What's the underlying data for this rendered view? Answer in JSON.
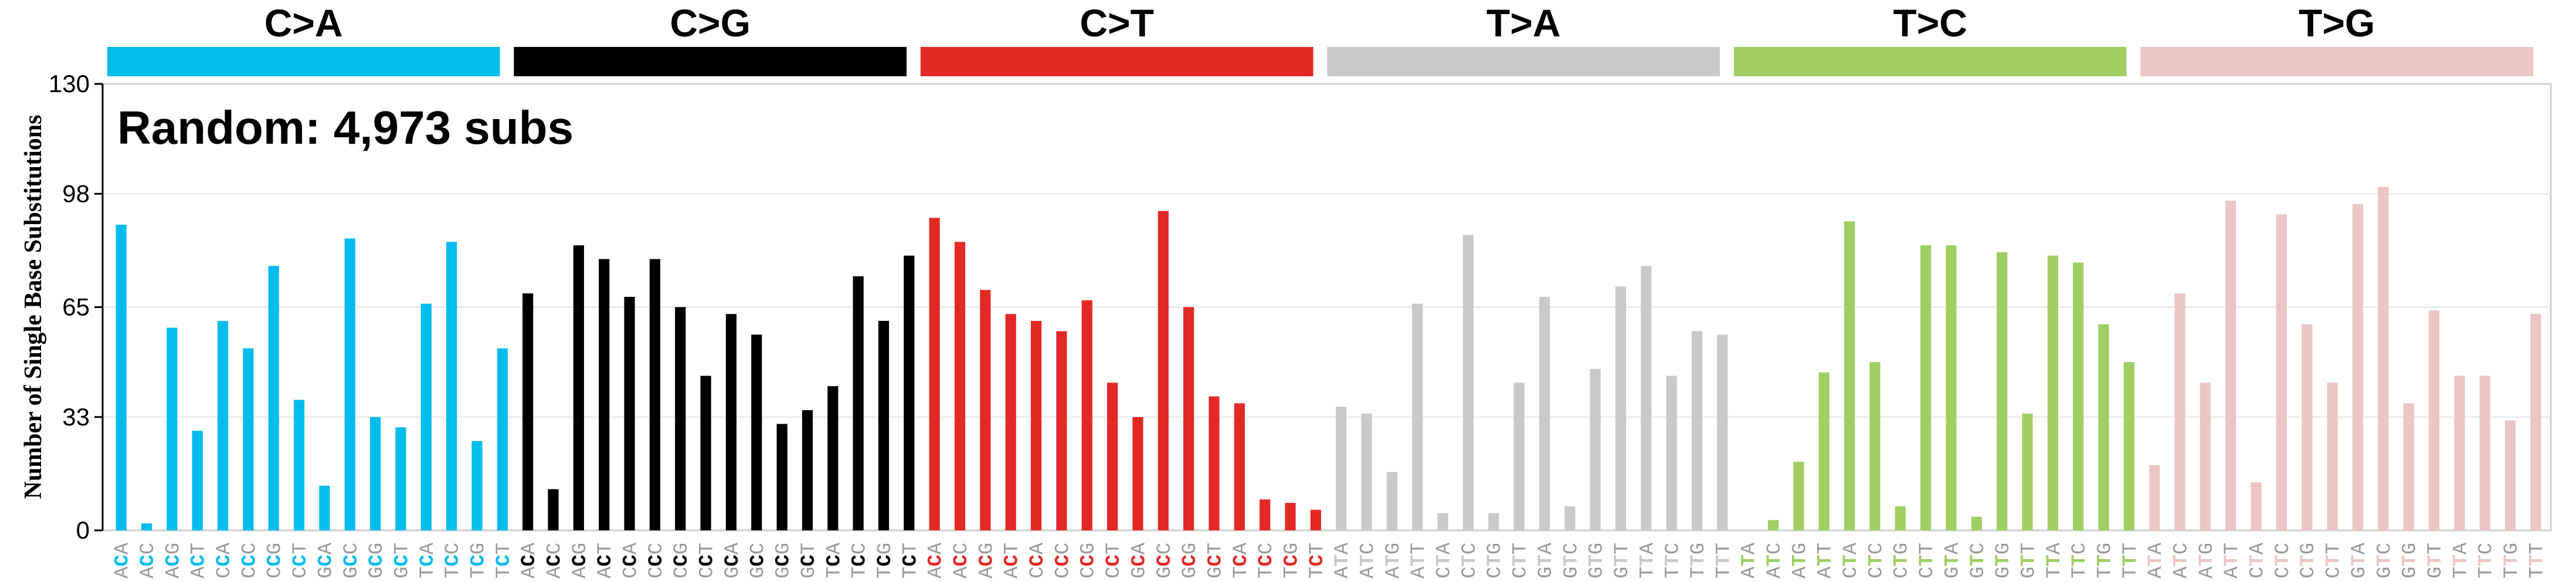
{
  "chart_data": {
    "type": "bar",
    "title": "Random: 4,973 subs",
    "ylabel": "Number of Single Base Substitutions",
    "ylim": [
      0,
      130
    ],
    "yticks": [
      0,
      33,
      65,
      98,
      130
    ],
    "grid": true,
    "groups": [
      {
        "name": "C>A",
        "color": "#03bcee"
      },
      {
        "name": "C>G",
        "color": "#000000"
      },
      {
        "name": "C>T",
        "color": "#e32926"
      },
      {
        "name": "T>A",
        "color": "#cac9c9"
      },
      {
        "name": "T>C",
        "color": "#a1ce63"
      },
      {
        "name": "T>G",
        "color": "#ebc6c4"
      }
    ],
    "contexts": [
      "ACA",
      "ACC",
      "ACG",
      "ACT",
      "CCA",
      "CCC",
      "CCG",
      "CCT",
      "GCA",
      "GCC",
      "GCG",
      "GCT",
      "TCA",
      "TCC",
      "TCG",
      "TCT"
    ],
    "contexts_t": [
      "ATA",
      "ATC",
      "ATG",
      "ATT",
      "CTA",
      "CTC",
      "CTG",
      "CTT",
      "GTA",
      "GTC",
      "GTG",
      "GTT",
      "TTA",
      "TTC",
      "TTG",
      "TTT"
    ],
    "series": [
      {
        "name": "C>A",
        "values": [
          89,
          2,
          59,
          29,
          61,
          53,
          77,
          38,
          13,
          85,
          33,
          30,
          66,
          84,
          26,
          53
        ]
      },
      {
        "name": "C>G",
        "values": [
          69,
          12,
          83,
          79,
          68,
          79,
          65,
          45,
          63,
          57,
          31,
          35,
          42,
          74,
          61,
          80
        ]
      },
      {
        "name": "C>T",
        "values": [
          91,
          84,
          70,
          63,
          61,
          58,
          67,
          43,
          33,
          93,
          65,
          39,
          37,
          9,
          8,
          6
        ]
      },
      {
        "name": "T>A",
        "values": [
          36,
          34,
          17,
          66,
          5,
          86,
          5,
          43,
          68,
          7,
          47,
          71,
          77,
          45,
          58,
          57
        ]
      },
      {
        "name": "T>C",
        "values": [
          0,
          3,
          20,
          46,
          90,
          49,
          7,
          83,
          83,
          4,
          81,
          34,
          80,
          78,
          60,
          49
        ]
      },
      {
        "name": "T>G",
        "values": [
          19,
          69,
          43,
          96,
          14,
          92,
          60,
          43,
          95,
          100,
          37,
          64,
          45,
          45,
          32,
          63
        ]
      }
    ]
  }
}
